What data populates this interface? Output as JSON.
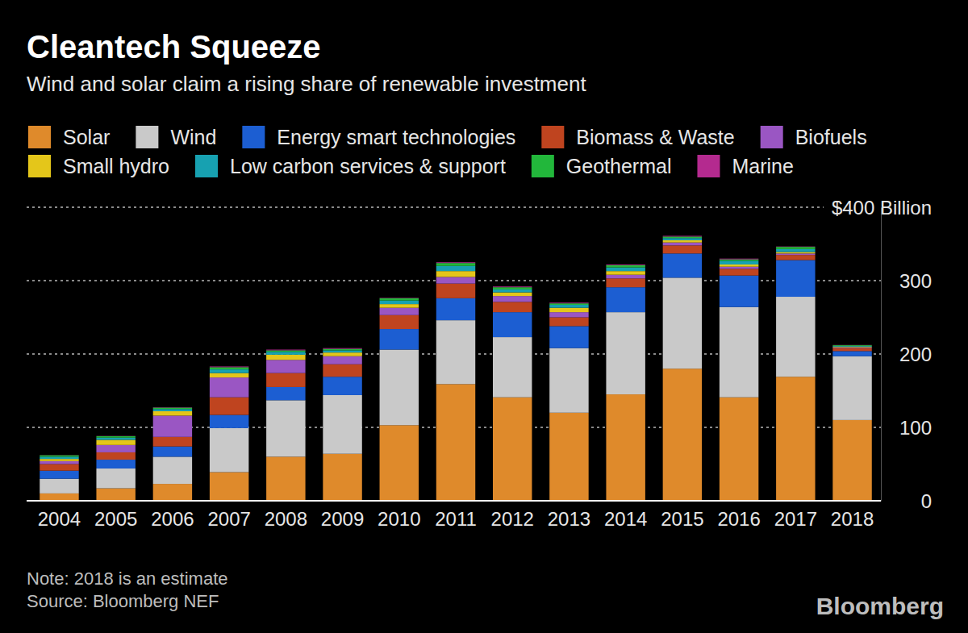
{
  "chart_data": {
    "type": "bar",
    "title": "Cleantech Squeeze",
    "subtitle": "Wind and solar claim a rising share of renewable investment",
    "note": "Note: 2018 is an estimate",
    "source": "Source: Bloomberg NEF",
    "brand": "Bloomberg",
    "stacked": true,
    "grid": true,
    "legend": "top-left",
    "categories": [
      "2004",
      "2005",
      "2006",
      "2007",
      "2008",
      "2009",
      "2010",
      "2011",
      "2012",
      "2013",
      "2014",
      "2015",
      "2016",
      "2017",
      "2018"
    ],
    "ylim": [
      0,
      400
    ],
    "yticks": [
      0,
      100,
      200,
      300,
      {
        "value": 400,
        "label": "$400 Billion"
      }
    ],
    "series": [
      {
        "name": "Solar",
        "color": "#df8a2b",
        "values": [
          10,
          17,
          23,
          39,
          60,
          64,
          103,
          159,
          141,
          120,
          145,
          180,
          141,
          169,
          110
        ]
      },
      {
        "name": "Wind",
        "color": "#c9c9c9",
        "values": [
          20,
          27,
          37,
          60,
          77,
          80,
          103,
          87,
          82,
          88,
          112,
          124,
          123,
          109,
          87
        ]
      },
      {
        "name": "Energy smart technologies",
        "color": "#1c5ed2",
        "values": [
          11,
          12,
          14,
          18,
          18,
          25,
          28,
          30,
          34,
          30,
          34,
          33,
          43,
          50,
          7
        ]
      },
      {
        "name": "Biomass & Waste",
        "color": "#bf441f",
        "values": [
          9,
          10,
          13,
          24,
          19,
          17,
          19,
          20,
          14,
          12,
          12,
          11,
          9,
          7,
          4
        ]
      },
      {
        "name": "Biofuels",
        "color": "#9a56c3",
        "values": [
          4,
          10,
          29,
          27,
          18,
          11,
          10,
          9,
          8,
          7,
          5,
          4,
          3,
          2,
          1
        ]
      },
      {
        "name": "Small hydro",
        "color": "#e4c61a",
        "values": [
          3,
          7,
          6,
          6,
          7,
          5,
          5,
          8,
          5,
          6,
          5,
          3,
          3,
          2,
          1
        ]
      },
      {
        "name": "Low carbon services & support",
        "color": "#17a1b1",
        "values": [
          3,
          3,
          3,
          5,
          4,
          3,
          5,
          7,
          4,
          4,
          5,
          3,
          5,
          4,
          1
        ]
      },
      {
        "name": "Geothermal",
        "color": "#22b73b",
        "values": [
          2,
          2,
          2,
          3,
          2,
          2,
          3,
          4,
          3,
          2,
          3,
          2,
          2,
          3,
          1
        ]
      },
      {
        "name": "Marine",
        "color": "#b42a8f",
        "values": [
          0.2,
          0.3,
          0.5,
          1,
          1,
          1,
          0.5,
          1,
          1,
          1,
          1,
          1,
          1,
          0.5,
          0.3
        ]
      }
    ]
  }
}
